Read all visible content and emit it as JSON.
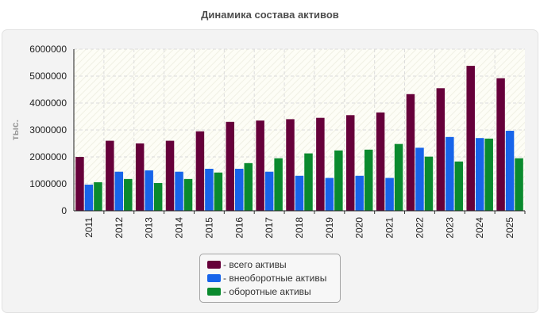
{
  "chart_data": {
    "type": "bar",
    "title": "Динамика состава активов",
    "ylabel": "тыс.",
    "xlabel": "",
    "ylim": [
      0,
      6000000
    ],
    "yticks": [
      "0",
      "1000000",
      "2000000",
      "3000000",
      "4000000",
      "5000000",
      "6000000"
    ],
    "grid": true,
    "legend_position": "bottom",
    "categories": [
      "2011",
      "2012",
      "2013",
      "2014",
      "2015",
      "2016",
      "2017",
      "2018",
      "2019",
      "2020",
      "2021",
      "2022",
      "2023",
      "2024",
      "2025"
    ],
    "series": [
      {
        "name": "всего активы",
        "legend_label": "- всего активы",
        "color": "#66003a",
        "values": [
          2000000,
          2600000,
          2500000,
          2600000,
          2950000,
          3300000,
          3350000,
          3400000,
          3450000,
          3550000,
          3650000,
          4330000,
          4550000,
          5380000,
          4920000
        ]
      },
      {
        "name": "внеоборотные активы",
        "legend_label": "- внеоборотные активы",
        "color": "#1764ea",
        "values": [
          970000,
          1450000,
          1500000,
          1450000,
          1560000,
          1560000,
          1450000,
          1300000,
          1220000,
          1300000,
          1220000,
          2340000,
          2740000,
          2700000,
          2970000
        ]
      },
      {
        "name": "оборотные активы",
        "legend_label": "- оборотные активы",
        "color": "#0a8a2e",
        "values": [
          1060000,
          1180000,
          1030000,
          1180000,
          1420000,
          1770000,
          1950000,
          2130000,
          2240000,
          2270000,
          2480000,
          2010000,
          1830000,
          2680000,
          1950000
        ]
      }
    ]
  }
}
